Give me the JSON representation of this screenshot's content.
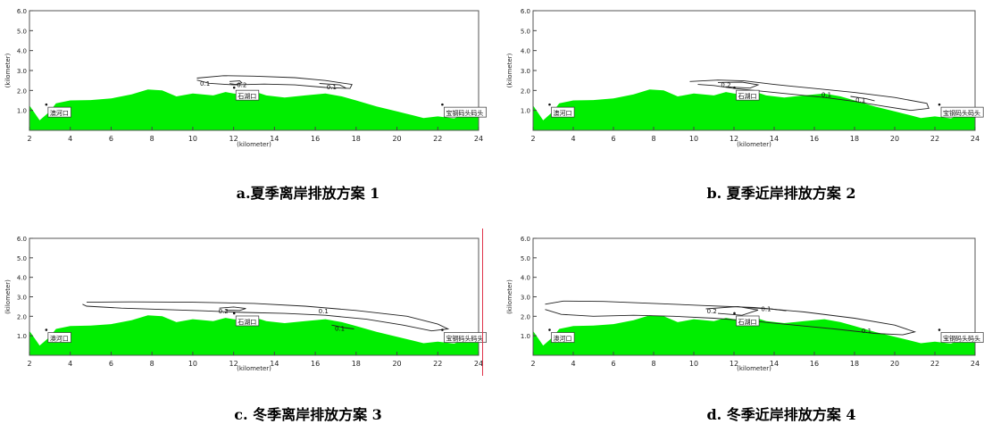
{
  "panels": [
    {
      "caption": "a.夏季离岸排放方案 1",
      "chart_data": {
        "type": "contour",
        "xlabel": "(kilometer)",
        "ylabel": "(kilometer)",
        "xlim": [
          2,
          24
        ],
        "ylim": [
          0,
          6
        ],
        "xticks": [
          "2",
          "4",
          "6",
          "8",
          "10",
          "12",
          "14",
          "16",
          "18",
          "20",
          "22",
          "24"
        ],
        "yticks": [
          "1.0",
          "2.0",
          "3.0",
          "4.0",
          "5.0",
          "6.0"
        ],
        "land_color": "#00ee00",
        "place_labels": [
          {
            "text": "澳河口",
            "x": 3.0,
            "y": 0.8
          },
          {
            "text": "石湖口",
            "x": 12.2,
            "y": 1.65
          },
          {
            "text": "宝钢码头码头",
            "x": 22.4,
            "y": 0.8
          }
        ],
        "contours": [
          {
            "label": "0.1",
            "points": [
              [
                10.2,
                2.62
              ],
              [
                11.5,
                2.74
              ],
              [
                13,
                2.72
              ],
              [
                15,
                2.64
              ],
              [
                16.5,
                2.5
              ],
              [
                17.8,
                2.3
              ],
              [
                17.7,
                2.1
              ],
              [
                16.5,
                2.15
              ],
              [
                15,
                2.28
              ],
              [
                13.5,
                2.32
              ],
              [
                12,
                2.28
              ],
              [
                10.8,
                2.36
              ],
              [
                10.2,
                2.52
              ]
            ],
            "label_at": [
              10.6,
              2.38
            ]
          },
          {
            "label": "0.1",
            "points": [
              [
                16.2,
                2.35
              ],
              [
                17.2,
                2.28
              ],
              [
                17.5,
                2.12
              ]
            ],
            "label_at": [
              16.8,
              2.2
            ]
          },
          {
            "label": "0.2",
            "points": [
              [
                11.8,
                2.45
              ],
              [
                12.3,
                2.48
              ],
              [
                12.4,
                2.38
              ],
              [
                12.1,
                2.3
              ],
              [
                11.8,
                2.34
              ]
            ],
            "label_at": [
              12.4,
              2.3
            ]
          }
        ]
      }
    },
    {
      "caption": "b. 夏季近岸排放方案 2",
      "chart_data": {
        "type": "contour",
        "xlabel": "(kilometer)",
        "ylabel": "(kilometer)",
        "xlim": [
          2,
          24
        ],
        "ylim": [
          0,
          6
        ],
        "xticks": [
          "2",
          "4",
          "6",
          "8",
          "10",
          "12",
          "14",
          "16",
          "18",
          "20",
          "22",
          "24"
        ],
        "yticks": [
          "1.0",
          "2.0",
          "3.0",
          "4.0",
          "5.0",
          "6.0"
        ],
        "land_color": "#00ee00",
        "place_labels": [
          {
            "text": "澳河口",
            "x": 3.0,
            "y": 0.8
          },
          {
            "text": "石湖口",
            "x": 12.2,
            "y": 1.65
          },
          {
            "text": "宝钢码头码头",
            "x": 22.4,
            "y": 0.8
          }
        ],
        "contours": [
          {
            "label": "0.1",
            "points": [
              [
                9.8,
                2.45
              ],
              [
                11.2,
                2.52
              ],
              [
                12.5,
                2.48
              ],
              [
                14,
                2.3
              ],
              [
                16,
                2.1
              ],
              [
                18,
                1.9
              ],
              [
                20,
                1.65
              ],
              [
                21.6,
                1.35
              ],
              [
                21.7,
                1.1
              ],
              [
                20.8,
                1.0
              ],
              [
                19.5,
                1.2
              ],
              [
                18,
                1.45
              ],
              [
                16.5,
                1.65
              ],
              [
                15,
                1.8
              ],
              [
                13.5,
                1.95
              ],
              [
                12,
                2.1
              ],
              [
                11,
                2.25
              ],
              [
                10.2,
                2.3
              ]
            ],
            "label_at": [
              16.6,
              1.82
            ]
          },
          {
            "label": "0.1",
            "points": [
              [
                17.8,
                1.7
              ],
              [
                18.6,
                1.58
              ],
              [
                19.0,
                1.48
              ]
            ],
            "label_at": [
              18.3,
              1.55
            ]
          },
          {
            "label": "0.2",
            "points": [
              [
                11.2,
                2.4
              ],
              [
                12.4,
                2.42
              ],
              [
                13.2,
                2.28
              ],
              [
                12.8,
                2.12
              ],
              [
                11.6,
                2.18
              ]
            ],
            "label_at": [
              11.6,
              2.3
            ]
          }
        ]
      }
    },
    {
      "caption": "c. 冬季离岸排放方案 3",
      "chart_data": {
        "type": "contour",
        "xlabel": "(kilometer)",
        "ylabel": "(kilometer)",
        "xlim": [
          2,
          24
        ],
        "ylim": [
          0,
          6
        ],
        "xticks": [
          "2",
          "4",
          "6",
          "8",
          "10",
          "12",
          "14",
          "16",
          "18",
          "20",
          "22",
          "24"
        ],
        "yticks": [
          "1.0",
          "2.0",
          "3.0",
          "4.0",
          "5.0",
          "6.0"
        ],
        "land_color": "#00ee00",
        "place_labels": [
          {
            "text": "澳河口",
            "x": 3.0,
            "y": 0.8
          },
          {
            "text": "石湖口",
            "x": 12.2,
            "y": 1.65
          },
          {
            "text": "宝钢码头码头",
            "x": 22.4,
            "y": 0.8
          }
        ],
        "contours": [
          {
            "label": "0.1",
            "points": [
              [
                4.8,
                2.72
              ],
              [
                7,
                2.74
              ],
              [
                10,
                2.72
              ],
              [
                13,
                2.66
              ],
              [
                15.5,
                2.52
              ],
              [
                18,
                2.3
              ],
              [
                20.5,
                2.0
              ],
              [
                22,
                1.6
              ],
              [
                22.5,
                1.35
              ],
              [
                21.7,
                1.25
              ],
              [
                20.3,
                1.55
              ],
              [
                18.5,
                1.85
              ],
              [
                16.5,
                2.05
              ],
              [
                14.5,
                2.15
              ],
              [
                12.5,
                2.2
              ],
              [
                10.5,
                2.28
              ],
              [
                8.5,
                2.35
              ],
              [
                6.5,
                2.42
              ],
              [
                4.8,
                2.52
              ],
              [
                4.6,
                2.62
              ]
            ],
            "label_at": [
              16.4,
              2.3
            ]
          },
          {
            "label": "0.1",
            "points": [
              [
                16.8,
                1.55
              ],
              [
                17.4,
                1.42
              ],
              [
                17.9,
                1.35
              ]
            ],
            "label_at": [
              17.2,
              1.4
            ]
          },
          {
            "label": "0.2",
            "points": [
              [
                11.3,
                2.42
              ],
              [
                12.0,
                2.48
              ],
              [
                12.6,
                2.4
              ],
              [
                12.3,
                2.3
              ],
              [
                11.6,
                2.32
              ]
            ],
            "label_at": [
              11.5,
              2.3
            ]
          }
        ]
      }
    },
    {
      "caption": "d. 冬季近岸排放方案 4",
      "chart_data": {
        "type": "contour",
        "xlabel": "(kilometer)",
        "ylabel": "(kilometer)",
        "xlim": [
          2,
          24
        ],
        "ylim": [
          0,
          6
        ],
        "xticks": [
          "2",
          "4",
          "6",
          "8",
          "10",
          "12",
          "14",
          "16",
          "18",
          "20",
          "22",
          "24"
        ],
        "yticks": [
          "1.0",
          "2.0",
          "3.0",
          "4.0",
          "5.0",
          "6.0"
        ],
        "land_color": "#00ee00",
        "place_labels": [
          {
            "text": "澳河口",
            "x": 3.0,
            "y": 0.8
          },
          {
            "text": "石湖口",
            "x": 12.2,
            "y": 1.65
          },
          {
            "text": "宝钢码头码头",
            "x": 22.4,
            "y": 0.8
          }
        ],
        "contours": [
          {
            "label": "0.1",
            "points": [
              [
                2.6,
                2.62
              ],
              [
                3.5,
                2.78
              ],
              [
                5.5,
                2.76
              ],
              [
                8,
                2.66
              ],
              [
                10.5,
                2.55
              ],
              [
                13,
                2.45
              ],
              [
                15.5,
                2.22
              ],
              [
                18,
                1.9
              ],
              [
                20,
                1.55
              ],
              [
                21,
                1.2
              ],
              [
                20.4,
                1.05
              ],
              [
                19,
                1.12
              ],
              [
                17,
                1.35
              ],
              [
                15,
                1.55
              ],
              [
                13,
                1.75
              ],
              [
                11,
                1.9
              ],
              [
                9,
                2.0
              ],
              [
                7,
                2.05
              ],
              [
                5,
                2.0
              ],
              [
                3.4,
                2.1
              ],
              [
                2.6,
                2.35
              ]
            ],
            "label_at": [
              18.6,
              1.28
            ]
          },
          {
            "label": "0.1",
            "points": [
              [
                12.6,
                2.45
              ],
              [
                13.8,
                2.38
              ],
              [
                14.6,
                2.28
              ]
            ],
            "label_at": [
              13.6,
              2.4
            ]
          },
          {
            "label": "0.2",
            "points": [
              [
                10.6,
                2.38
              ],
              [
                12.2,
                2.5
              ],
              [
                13.2,
                2.32
              ],
              [
                12.4,
                2.05
              ],
              [
                11.2,
                2.15
              ]
            ],
            "label_at": [
              10.9,
              2.3
            ]
          }
        ]
      }
    }
  ]
}
